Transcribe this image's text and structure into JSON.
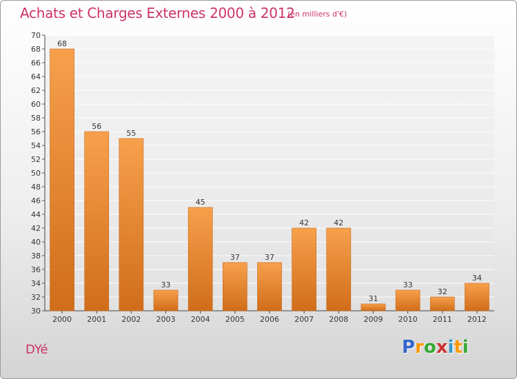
{
  "header": {
    "title": "Achats et Charges Externes 2000 à 2012",
    "subtitle": "(en milliers d'€)"
  },
  "footer": {
    "town": "DYé",
    "logo_text": "Proxiti",
    "logo_colors": [
      "#3366cc",
      "#ff9900",
      "#33aa33",
      "#cc3333",
      "#3399cc",
      "#ff9900",
      "#33aa33"
    ]
  },
  "colors": {
    "bar_top": "#f7a04c",
    "bar_bottom": "#d06d1a",
    "text": "#cc3366",
    "grid": "#ffffff"
  },
  "chart_data": {
    "type": "bar",
    "title": "Achats et Charges Externes 2000 à 2012",
    "subtitle": "(en milliers d'€)",
    "categories": [
      "2000",
      "2001",
      "2002",
      "2003",
      "2004",
      "2005",
      "2006",
      "2007",
      "2008",
      "2009",
      "2010",
      "2011",
      "2012"
    ],
    "values": [
      68,
      56,
      55,
      33,
      45,
      37,
      37,
      42,
      42,
      31,
      33,
      32,
      34
    ],
    "ylim": [
      30,
      70
    ],
    "ytick_step": 2,
    "grid": true,
    "xlabel": "",
    "ylabel": ""
  }
}
